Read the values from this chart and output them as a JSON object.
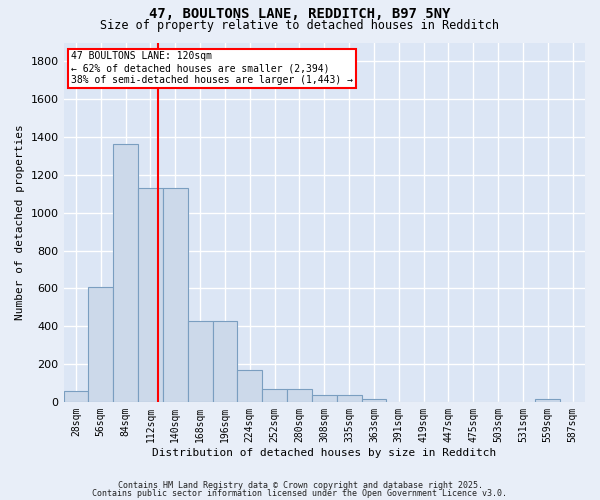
{
  "title_line1": "47, BOULTONS LANE, REDDITCH, B97 5NY",
  "title_line2": "Size of property relative to detached houses in Redditch",
  "xlabel": "Distribution of detached houses by size in Redditch",
  "ylabel": "Number of detached properties",
  "bar_color": "#ccd9ea",
  "bar_edge_color": "#7a9ec0",
  "background_color": "#dce6f5",
  "grid_color": "#ffffff",
  "bins": [
    "28sqm",
    "56sqm",
    "84sqm",
    "112sqm",
    "140sqm",
    "168sqm",
    "196sqm",
    "224sqm",
    "252sqm",
    "280sqm",
    "308sqm",
    "335sqm",
    "363sqm",
    "391sqm",
    "419sqm",
    "447sqm",
    "475sqm",
    "503sqm",
    "531sqm",
    "559sqm",
    "587sqm"
  ],
  "values": [
    55,
    605,
    1365,
    1130,
    1130,
    430,
    430,
    170,
    68,
    68,
    35,
    35,
    15,
    0,
    0,
    0,
    0,
    0,
    0,
    15,
    0
  ],
  "red_line_x": 3.285,
  "annotation_text": "47 BOULTONS LANE: 120sqm\n← 62% of detached houses are smaller (2,394)\n38% of semi-detached houses are larger (1,443) →",
  "ylim": [
    0,
    1900
  ],
  "yticks": [
    0,
    200,
    400,
    600,
    800,
    1000,
    1200,
    1400,
    1600,
    1800
  ],
  "footnote1": "Contains HM Land Registry data © Crown copyright and database right 2025.",
  "footnote2": "Contains public sector information licensed under the Open Government Licence v3.0."
}
